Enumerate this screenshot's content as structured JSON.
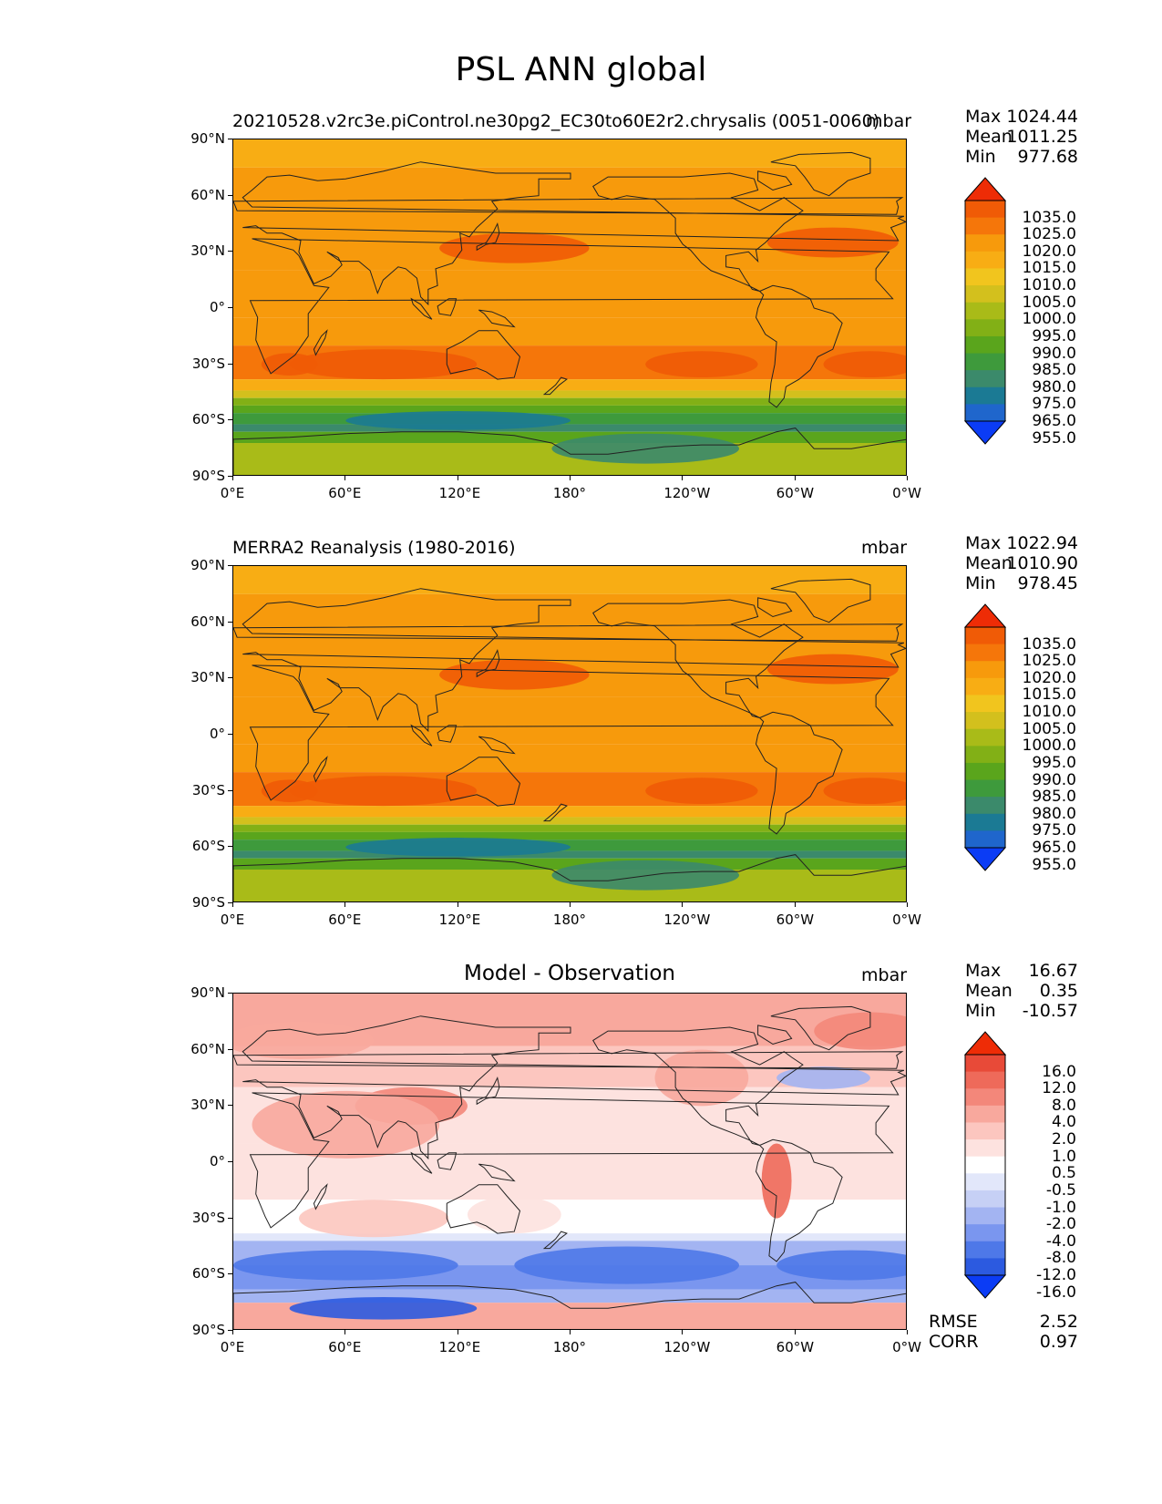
{
  "suptitle": "PSL ANN global",
  "panels": [
    {
      "title": "20210528.v2rc3e.piControl.ne30pg2_EC30to60E2r2.chrysalis (0051-0060)",
      "units": "mbar",
      "stats": {
        "max_label": "Max",
        "max": "1024.44",
        "mean_label": "Mean",
        "mean": "1011.25",
        "min_label": "Min",
        "min": "977.68"
      },
      "colorbar": [
        "1035.0",
        "1025.0",
        "1020.0",
        "1015.0",
        "1010.0",
        "1005.0",
        "1000.0",
        "995.0",
        "990.0",
        "985.0",
        "980.0",
        "975.0",
        "965.0",
        "955.0"
      ]
    },
    {
      "title": "MERRA2 Reanalysis (1980-2016)",
      "units": "mbar",
      "stats": {
        "max_label": "Max",
        "max": "1022.94",
        "mean_label": "Mean",
        "mean": "1010.90",
        "min_label": "Min",
        "min": "978.45"
      },
      "colorbar": [
        "1035.0",
        "1025.0",
        "1020.0",
        "1015.0",
        "1010.0",
        "1005.0",
        "1000.0",
        "995.0",
        "990.0",
        "985.0",
        "980.0",
        "975.0",
        "965.0",
        "955.0"
      ]
    },
    {
      "title": "Model - Observation",
      "units": "mbar",
      "stats": {
        "max_label": "Max",
        "max": "16.67",
        "mean_label": "Mean",
        "mean": "0.35",
        "min_label": "Min",
        "min": "-10.57"
      },
      "colorbar": [
        "16.0",
        "12.0",
        "8.0",
        "4.0",
        "2.0",
        "1.0",
        "0.5",
        "-0.5",
        "-1.0",
        "-2.0",
        "-4.0",
        "-8.0",
        "-12.0",
        "-16.0"
      ],
      "rmse_label": "RMSE",
      "rmse": "2.52",
      "corr_label": "CORR",
      "corr": "0.97"
    }
  ],
  "lat_ticks": [
    "90°N",
    "60°N",
    "30°N",
    "0°",
    "30°S",
    "60°S",
    "90°S"
  ],
  "lon_ticks": [
    "0°E",
    "60°E",
    "120°E",
    "180°",
    "120°W",
    "60°W",
    "0°W"
  ],
  "colors": {
    "psl": [
      "#0b3cf5",
      "#1f66cc",
      "#1b7a94",
      "#3b8a6b",
      "#3e9a3c",
      "#5aa51c",
      "#82b016",
      "#a9bb18",
      "#d3c01d",
      "#f1c51e",
      "#f8ad14",
      "#f79a0c",
      "#f5760a",
      "#f05b06",
      "#ee2c06"
    ],
    "diff": [
      "#0b3cf5",
      "#2c5ae0",
      "#4e78e8",
      "#7a96ef",
      "#a3b4f2",
      "#c6d0f5",
      "#e2e7fa",
      "#ffffff",
      "#fde2df",
      "#fcc6bf",
      "#f8a89d",
      "#f3877a",
      "#ee6a5a",
      "#e84a38",
      "#ee2c06"
    ]
  }
}
